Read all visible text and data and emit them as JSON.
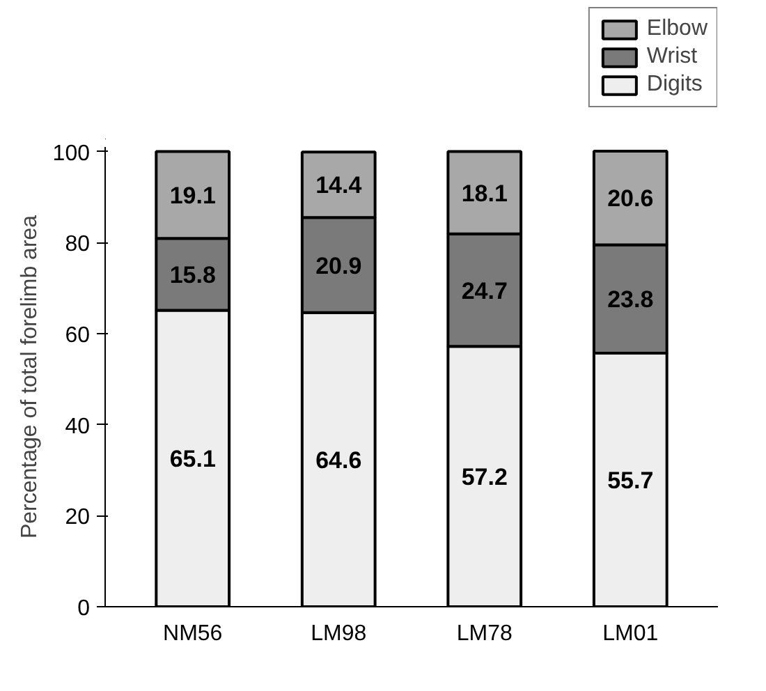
{
  "chart_data": {
    "type": "bar",
    "stacked": true,
    "ylabel": "Percentage of total forelimb area",
    "categories": [
      "NM56",
      "LM98",
      "LM78",
      "LM01"
    ],
    "series": [
      {
        "name": "Digits",
        "color": "#eeeeee",
        "values": [
          65.1,
          64.6,
          57.2,
          55.7
        ]
      },
      {
        "name": "Wrist",
        "color": "#7a7a7a",
        "values": [
          15.8,
          20.9,
          24.7,
          23.8
        ]
      },
      {
        "name": "Elbow",
        "color": "#a8a8a8",
        "values": [
          19.1,
          14.4,
          18.1,
          20.6
        ]
      }
    ],
    "ylim": [
      0,
      101
    ],
    "yticks": [
      0,
      20,
      40,
      60,
      80,
      100
    ],
    "grid": false,
    "legend": "top right",
    "data_labels": true
  }
}
